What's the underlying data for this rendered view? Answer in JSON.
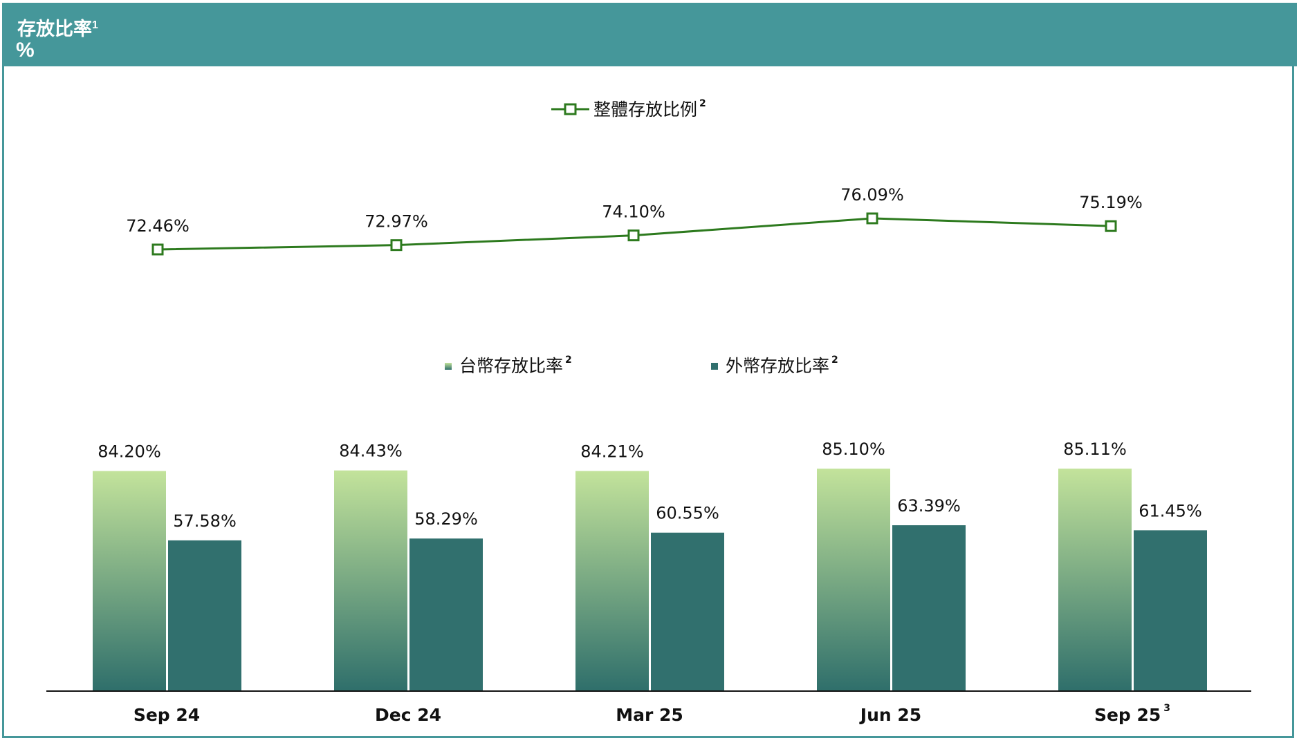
{
  "header": {
    "title": "存放比率",
    "title_sup": "1",
    "unit": "%"
  },
  "chart_data": [
    {
      "type": "line",
      "categories": [
        "Sep 24",
        "Dec 24",
        "Mar 25",
        "Jun 25",
        "Sep 25"
      ],
      "series": [
        {
          "name": "整體存放比例",
          "sup": "2",
          "values": [
            72.46,
            72.97,
            74.1,
            76.09,
            75.19
          ],
          "labels": [
            "72.46%",
            "72.97%",
            "74.10%",
            "76.09%",
            "75.19%"
          ],
          "color": "#2d7a1e"
        }
      ],
      "legend": "top-center"
    },
    {
      "type": "bar",
      "categories": [
        "Sep 24",
        "Dec 24",
        "Mar 25",
        "Jun 25",
        "Sep 25"
      ],
      "category_sups": [
        "",
        "",
        "",
        "",
        "3"
      ],
      "series": [
        {
          "name": "台幣存放比率",
          "sup": "2",
          "values": [
            84.2,
            84.43,
            84.21,
            85.1,
            85.11
          ],
          "labels": [
            "84.20%",
            "84.43%",
            "84.21%",
            "85.10%",
            "85.11%"
          ],
          "color_top": "#c3e39b",
          "color_bottom": "#2f6f6b"
        },
        {
          "name": "外幣存放比率",
          "sup": "2",
          "values": [
            57.58,
            58.29,
            60.55,
            63.39,
            61.45
          ],
          "labels": [
            "57.58%",
            "58.29%",
            "60.55%",
            "63.39%",
            "61.45%"
          ],
          "color": "#31706e"
        }
      ],
      "ylim": [
        0,
        100
      ],
      "legend": "top-center"
    }
  ]
}
